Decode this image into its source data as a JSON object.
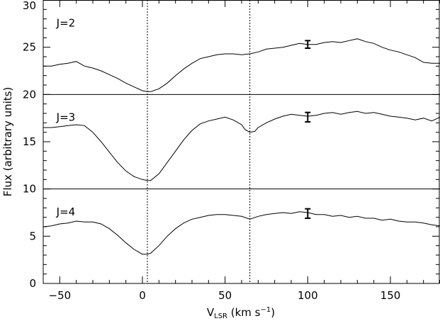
{
  "chart_data": {
    "type": "line",
    "xlabel": "V",
    "xlabel_sub": "LSR",
    "xlabel_unit_pre": " (km s",
    "xlabel_unit_sup": "−1",
    "xlabel_unit_post": ")",
    "ylabel": "Flux (arbitrary units)",
    "xlim": [
      -60,
      180
    ],
    "ylim": [
      0,
      30
    ],
    "x_ticks": [
      -50,
      0,
      50,
      100,
      150
    ],
    "x_tick_labels": [
      "−50",
      "0",
      "50",
      "100",
      "150"
    ],
    "y_ticks": [
      0,
      5,
      10,
      15,
      20,
      25,
      30
    ],
    "y_tick_labels": [
      "0",
      "5",
      "10",
      "15",
      "20",
      "25",
      "30"
    ],
    "separators_y": [
      10,
      20
    ],
    "vertical_reference_lines": [
      3,
      65
    ],
    "grid": false,
    "series": [
      {
        "name": "J=2",
        "label_at": [
          -52,
          27.2
        ],
        "errorbar": {
          "x": 100,
          "y": 25.3,
          "err": 0.4
        },
        "x": [
          -60,
          -55,
          -50,
          -45,
          -40,
          -35,
          -30,
          -25,
          -20,
          -15,
          -10,
          -5,
          0,
          3,
          5,
          10,
          15,
          20,
          25,
          30,
          35,
          40,
          45,
          50,
          55,
          60,
          65,
          70,
          75,
          80,
          85,
          90,
          95,
          100,
          105,
          110,
          115,
          120,
          125,
          130,
          135,
          140,
          145,
          150,
          155,
          160,
          165,
          170,
          175,
          180
        ],
        "y": [
          23.0,
          23.0,
          23.2,
          23.3,
          23.5,
          23.0,
          22.8,
          22.5,
          22.1,
          21.7,
          21.2,
          20.8,
          20.4,
          20.3,
          20.3,
          20.6,
          21.2,
          22.0,
          22.7,
          23.3,
          23.8,
          24.0,
          24.2,
          24.3,
          24.3,
          24.2,
          24.3,
          24.5,
          24.8,
          24.9,
          25.0,
          25.2,
          25.4,
          25.3,
          25.3,
          25.5,
          25.6,
          25.5,
          25.7,
          25.9,
          25.6,
          25.4,
          25.0,
          24.7,
          24.5,
          24.2,
          23.9,
          23.4,
          23.3,
          23.3
        ]
      },
      {
        "name": "J=3",
        "label_at": [
          -52,
          17.2
        ],
        "errorbar": {
          "x": 100,
          "y": 17.6,
          "err": 0.5
        },
        "x": [
          -60,
          -55,
          -50,
          -45,
          -40,
          -35,
          -30,
          -25,
          -20,
          -15,
          -10,
          -5,
          0,
          3,
          5,
          10,
          15,
          20,
          25,
          30,
          35,
          40,
          45,
          50,
          55,
          60,
          62,
          65,
          68,
          70,
          75,
          80,
          85,
          90,
          95,
          100,
          105,
          110,
          115,
          120,
          125,
          130,
          135,
          140,
          145,
          150,
          155,
          160,
          165,
          170,
          175,
          180
        ],
        "y": [
          16.5,
          16.5,
          16.6,
          16.7,
          16.8,
          16.7,
          16.0,
          15.0,
          13.9,
          12.8,
          11.9,
          11.3,
          11.0,
          10.9,
          10.9,
          11.6,
          12.8,
          14.0,
          15.2,
          16.2,
          16.9,
          17.2,
          17.4,
          17.6,
          17.3,
          16.8,
          16.3,
          16.0,
          16.1,
          16.5,
          17.0,
          17.4,
          17.7,
          17.9,
          17.8,
          17.7,
          17.8,
          18.0,
          18.1,
          17.9,
          18.1,
          18.2,
          18.0,
          18.1,
          17.9,
          17.7,
          17.6,
          17.5,
          17.3,
          17.5,
          17.2,
          17.6
        ]
      },
      {
        "name": "J=4",
        "label_at": [
          -52,
          7.2
        ],
        "errorbar": {
          "x": 100,
          "y": 7.4,
          "err": 0.5
        },
        "x": [
          -60,
          -55,
          -50,
          -45,
          -40,
          -35,
          -30,
          -25,
          -20,
          -15,
          -10,
          -5,
          0,
          3,
          5,
          10,
          15,
          20,
          25,
          30,
          35,
          40,
          45,
          50,
          55,
          60,
          65,
          70,
          75,
          80,
          85,
          90,
          95,
          100,
          105,
          110,
          115,
          120,
          125,
          130,
          135,
          140,
          145,
          150,
          155,
          160,
          165,
          170,
          175,
          180
        ],
        "y": [
          6.0,
          6.1,
          6.3,
          6.4,
          6.6,
          6.5,
          6.5,
          6.3,
          5.8,
          5.1,
          4.3,
          3.6,
          3.1,
          3.1,
          3.2,
          4.0,
          5.0,
          5.8,
          6.4,
          6.8,
          7.0,
          7.2,
          7.3,
          7.3,
          7.2,
          7.1,
          6.8,
          7.1,
          7.3,
          7.4,
          7.5,
          7.4,
          7.6,
          7.5,
          7.3,
          7.3,
          7.1,
          7.2,
          7.0,
          7.1,
          6.9,
          6.9,
          6.7,
          6.8,
          6.6,
          6.5,
          6.5,
          6.4,
          6.2,
          6.1
        ]
      }
    ]
  }
}
